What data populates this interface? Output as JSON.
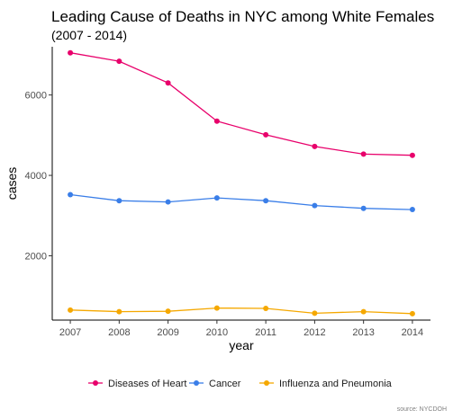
{
  "chart_data": {
    "type": "line",
    "title": "Leading Cause of Deaths in NYC among White Females",
    "subtitle": "(2007 - 2014)",
    "xlabel": "year",
    "ylabel": "cases",
    "caption": "source: NYCDOH",
    "x": [
      2007,
      2008,
      2009,
      2010,
      2011,
      2012,
      2013,
      2014
    ],
    "ylim": [
      400,
      7200
    ],
    "yticks": [
      2000,
      4000,
      6000
    ],
    "grid": false,
    "legend_position": "bottom",
    "series": [
      {
        "name": "Diseases of Heart",
        "color": "#e8006b",
        "values": [
          7050,
          6840,
          6300,
          5350,
          5010,
          4720,
          4530,
          4500
        ]
      },
      {
        "name": "Cancer",
        "color": "#3a7ee8",
        "values": [
          3520,
          3370,
          3340,
          3440,
          3370,
          3250,
          3180,
          3150
        ]
      },
      {
        "name": "Influenza and Pneumonia",
        "color": "#f5a800",
        "values": [
          650,
          610,
          620,
          700,
          690,
          570,
          610,
          560
        ]
      }
    ]
  }
}
